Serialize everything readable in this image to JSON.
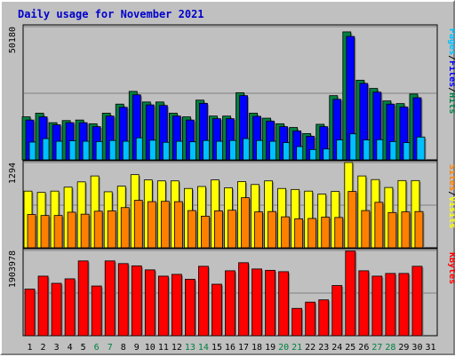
{
  "chart_data": {
    "type": "bar",
    "title": "Daily usage for November 2021",
    "categories": [
      "1",
      "2",
      "3",
      "4",
      "5",
      "6",
      "7",
      "8",
      "9",
      "10",
      "11",
      "12",
      "13",
      "14",
      "15",
      "16",
      "17",
      "18",
      "19",
      "20",
      "21",
      "22",
      "23",
      "24",
      "25",
      "26",
      "27",
      "28",
      "29",
      "30",
      "31"
    ],
    "weekend_days": [
      "6",
      "7",
      "13",
      "14",
      "20",
      "21",
      "27",
      "28"
    ],
    "panels": [
      {
        "name": "hits-files-pages",
        "max_label": "50180",
        "max_value": 50180,
        "right_label_parts": [
          {
            "text": "Pages",
            "color": "#00c0ff"
          },
          {
            "text": "/",
            "color": "#000000"
          },
          {
            "text": "Files",
            "color": "#0000ff"
          },
          {
            "text": "/",
            "color": "#000000"
          },
          {
            "text": "Hits",
            "color": "#008040"
          }
        ],
        "series": [
          {
            "name": "Hits",
            "color": "#008040",
            "values": [
              16200,
              17600,
              14000,
              14800,
              15000,
              13600,
              17600,
              21000,
              25800,
              21800,
              21800,
              17600,
              16200,
              22500,
              16500,
              16500,
              25300,
              17600,
              15700,
              13600,
              12200,
              9900,
              13400,
              24200,
              48200,
              30000,
              26900,
              22200,
              21200,
              24800,
              0
            ]
          },
          {
            "name": "Files",
            "color": "#0000ff",
            "values": [
              15000,
              16200,
              13200,
              14000,
              14000,
              12500,
              16500,
              19800,
              24500,
              20700,
              20500,
              16500,
              15000,
              21300,
              15500,
              15500,
              24200,
              16400,
              14600,
              12500,
              10900,
              8900,
              12500,
              22800,
              46500,
              28800,
              25500,
              21000,
              19900,
              23400,
              0
            ]
          },
          {
            "name": "Pages",
            "color": "#00c0ff",
            "values": [
              6700,
              8000,
              7000,
              7200,
              7000,
              6900,
              7300,
              7000,
              8300,
              7400,
              6600,
              7000,
              6800,
              7300,
              7000,
              7300,
              8000,
              7300,
              7000,
              6500,
              5000,
              3900,
              4100,
              7500,
              9800,
              7500,
              7600,
              6900,
              6500,
              8600,
              0
            ]
          }
        ]
      },
      {
        "name": "visits-sites",
        "max_label": "1294",
        "max_value": 1294,
        "right_label_parts": [
          {
            "text": "Sites",
            "color": "#ff8000"
          },
          {
            "text": "/",
            "color": "#000000"
          },
          {
            "text": "Visits",
            "color": "#ffff00"
          }
        ],
        "series": [
          {
            "name": "Visits",
            "color": "#ffff00",
            "values": [
              860,
              840,
              860,
              920,
              1000,
              1090,
              850,
              935,
              1110,
              1030,
              1015,
              1015,
              900,
              930,
              1030,
              910,
              1005,
              960,
              1015,
              900,
              885,
              860,
              815,
              855,
              1294,
              1090,
              1035,
              915,
              1020,
              1020,
              0
            ]
          },
          {
            "name": "Sites",
            "color": "#ff8000",
            "values": [
              505,
              490,
              490,
              540,
              510,
              555,
              560,
              610,
              720,
              700,
              705,
              700,
              565,
              480,
              560,
              570,
              760,
              545,
              550,
              470,
              440,
              445,
              465,
              460,
              855,
              565,
              690,
              535,
              545,
              550,
              0
            ]
          }
        ]
      },
      {
        "name": "kbytes",
        "max_label": "1903978",
        "max_value": 1903978,
        "right_label_parts": [
          {
            "text": "KBytes",
            "color": "#ff0000"
          }
        ],
        "series": [
          {
            "name": "KBytes",
            "color": "#ff0000",
            "values": [
              1040000,
              1330000,
              1170000,
              1270000,
              1670000,
              1110000,
              1670000,
              1610000,
              1560000,
              1470000,
              1330000,
              1370000,
              1260000,
              1550000,
              1150000,
              1450000,
              1630000,
              1490000,
              1460000,
              1430000,
              610000,
              750000,
              800000,
              1120000,
              1890000,
              1450000,
              1330000,
              1390000,
              1390000,
              1550000,
              0
            ]
          }
        ]
      }
    ]
  }
}
